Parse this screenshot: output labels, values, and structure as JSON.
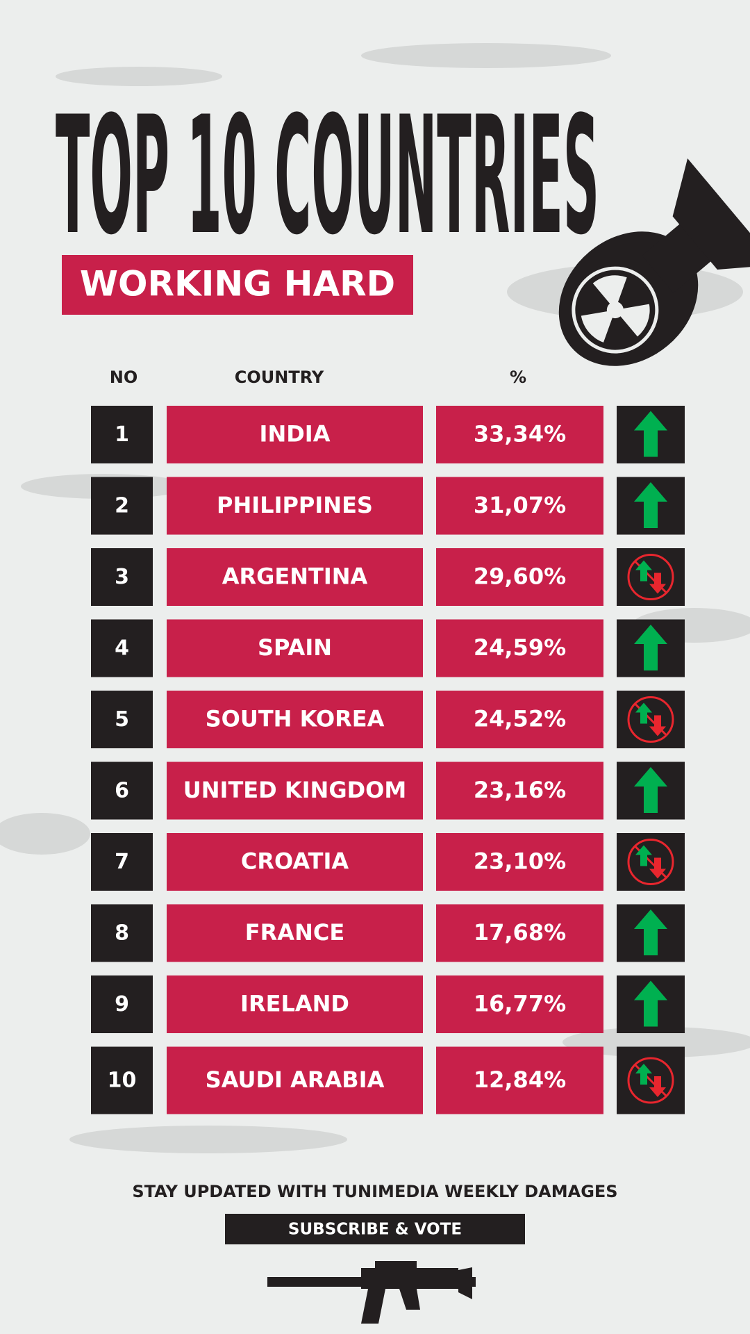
{
  "header": {
    "title": "TOP 10 COUNTRIES",
    "subtitle": "WORKING HARD"
  },
  "table": {
    "columns": [
      "NO",
      "COUNTRY",
      "%"
    ],
    "rows": [
      [
        "1",
        "INDIA",
        "33,34%"
      ],
      [
        "2",
        "PHILIPPINES",
        "31,07%"
      ],
      [
        "3",
        "ARGENTINA",
        "29,60%"
      ],
      [
        "4",
        "SPAIN",
        "24,59%"
      ],
      [
        "5",
        "SOUTH KOREA",
        "24,52%"
      ],
      [
        "6",
        "UNITED KINGDOM",
        "23,16%"
      ],
      [
        "7",
        "CROATIA",
        "23,10%"
      ],
      [
        "8",
        "FRANCE",
        "17,68%"
      ],
      [
        "9",
        "IRELAND",
        "16,77%"
      ],
      [
        "10",
        "SAUDI ARABIA",
        "12,84%"
      ]
    ]
  },
  "footer": {
    "text": "STAY UPDATED WITH TUNIMEDIA  WEEKLY DAMAGES",
    "button": "SUBSCRIBE & VOTE"
  }
}
